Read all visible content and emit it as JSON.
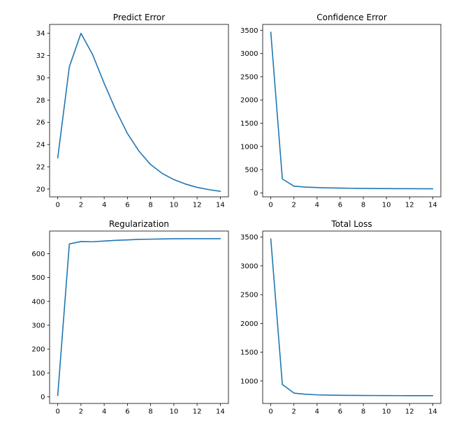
{
  "chart_data": [
    {
      "type": "line",
      "title": "Predict Error",
      "x": [
        0,
        1,
        2,
        3,
        4,
        5,
        6,
        7,
        8,
        9,
        10,
        11,
        12,
        13,
        14
      ],
      "series": [
        {
          "values": [
            22.8,
            31.0,
            34.0,
            32.1,
            29.5,
            27.1,
            25.0,
            23.4,
            22.2,
            21.4,
            20.85,
            20.45,
            20.15,
            19.95,
            19.8
          ]
        }
      ],
      "xlim": [
        -0.7,
        14.7
      ],
      "ylim": [
        19.3,
        34.8
      ],
      "xticks": [
        0,
        2,
        4,
        6,
        8,
        10,
        12,
        14
      ],
      "yticks": [
        20,
        22,
        24,
        26,
        28,
        30,
        32,
        34
      ],
      "xlabel": "",
      "ylabel": "",
      "grid": false,
      "line_color": "#1f77b4"
    },
    {
      "type": "line",
      "title": "Confidence Error",
      "x": [
        0,
        1,
        2,
        3,
        4,
        5,
        6,
        7,
        8,
        9,
        10,
        11,
        12,
        13,
        14
      ],
      "series": [
        {
          "values": [
            3460,
            300,
            145,
            125,
            115,
            108,
            103,
            99,
            96,
            94,
            92,
            91,
            90,
            89,
            88
          ]
        }
      ],
      "xlim": [
        -0.7,
        14.7
      ],
      "ylim": [
        -85,
        3625
      ],
      "xticks": [
        0,
        2,
        4,
        6,
        8,
        10,
        12,
        14
      ],
      "yticks": [
        0,
        500,
        1000,
        1500,
        2000,
        2500,
        3000,
        3500
      ],
      "xlabel": "",
      "ylabel": "",
      "grid": false,
      "line_color": "#1f77b4"
    },
    {
      "type": "line",
      "title": "Regularization",
      "x": [
        0,
        1,
        2,
        3,
        4,
        5,
        6,
        7,
        8,
        9,
        10,
        11,
        12,
        13,
        14
      ],
      "series": [
        {
          "values": [
            5,
            641,
            651,
            650,
            653,
            656,
            658,
            660,
            661,
            662,
            662.5,
            663,
            663,
            663,
            663
          ]
        }
      ],
      "xlim": [
        -0.7,
        14.7
      ],
      "ylim": [
        -28,
        695
      ],
      "xticks": [
        0,
        2,
        4,
        6,
        8,
        10,
        12,
        14
      ],
      "yticks": [
        0,
        100,
        200,
        300,
        400,
        500,
        600
      ],
      "xlabel": "",
      "ylabel": "",
      "grid": false,
      "line_color": "#1f77b4"
    },
    {
      "type": "line",
      "title": "Total Loss",
      "x": [
        0,
        1,
        2,
        3,
        4,
        5,
        6,
        7,
        8,
        9,
        10,
        11,
        12,
        13,
        14
      ],
      "series": [
        {
          "values": [
            3470,
            940,
            790,
            770,
            760,
            755,
            752,
            750,
            749,
            748,
            747,
            746.5,
            746,
            746,
            746
          ]
        }
      ],
      "xlim": [
        -0.7,
        14.7
      ],
      "ylim": [
        610,
        3605
      ],
      "xticks": [
        0,
        2,
        4,
        6,
        8,
        10,
        12,
        14
      ],
      "yticks": [
        1000,
        1500,
        2000,
        2500,
        3000,
        3500
      ],
      "xlabel": "",
      "ylabel": "",
      "grid": false,
      "line_color": "#1f77b4"
    }
  ]
}
